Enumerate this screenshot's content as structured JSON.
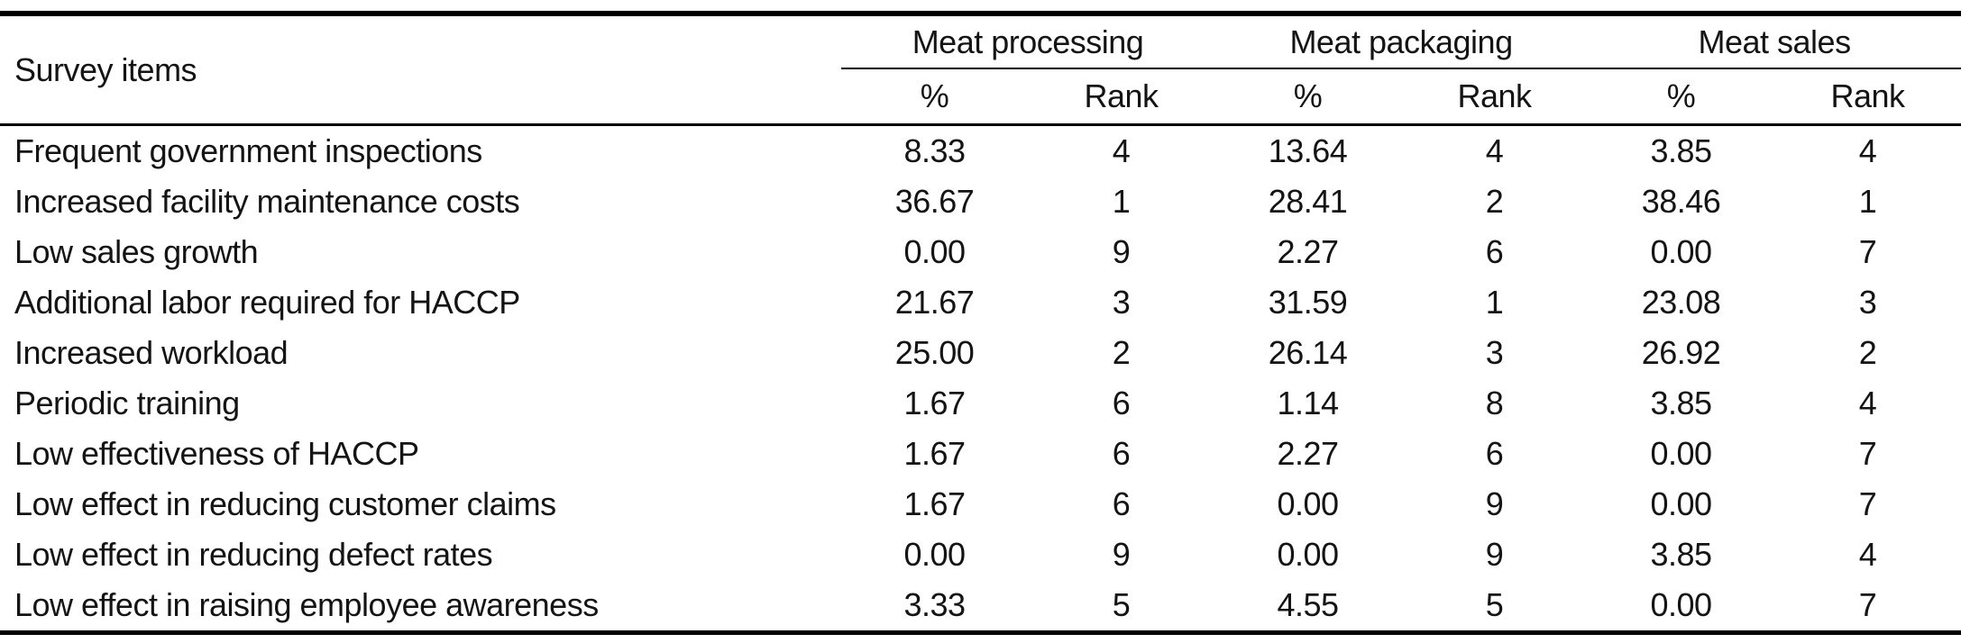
{
  "table": {
    "corner_header": "Survey items",
    "column_groups": [
      {
        "label": "Meat processing",
        "sub_columns": [
          "%",
          "Rank"
        ]
      },
      {
        "label": "Meat packaging",
        "sub_columns": [
          "%",
          "Rank"
        ]
      },
      {
        "label": "Meat sales",
        "sub_columns": [
          "%",
          "Rank"
        ]
      }
    ],
    "rows": [
      {
        "item": "Frequent government inspections",
        "cells": [
          "8.33",
          "4",
          "13.64",
          "4",
          "3.85",
          "4"
        ]
      },
      {
        "item": "Increased facility maintenance costs",
        "cells": [
          "36.67",
          "1",
          "28.41",
          "2",
          "38.46",
          "1"
        ]
      },
      {
        "item": "Low sales growth",
        "cells": [
          "0.00",
          "9",
          "2.27",
          "6",
          "0.00",
          "7"
        ]
      },
      {
        "item": "Additional labor required for HACCP",
        "cells": [
          "21.67",
          "3",
          "31.59",
          "1",
          "23.08",
          "3"
        ]
      },
      {
        "item": "Increased workload",
        "cells": [
          "25.00",
          "2",
          "26.14",
          "3",
          "26.92",
          "2"
        ]
      },
      {
        "item": "Periodic training",
        "cells": [
          "1.67",
          "6",
          "1.14",
          "8",
          "3.85",
          "4"
        ]
      },
      {
        "item": "Low effectiveness of HACCP",
        "cells": [
          "1.67",
          "6",
          "2.27",
          "6",
          "0.00",
          "7"
        ]
      },
      {
        "item": "Low effect in reducing customer claims",
        "cells": [
          "1.67",
          "6",
          "0.00",
          "9",
          "0.00",
          "7"
        ]
      },
      {
        "item": "Low effect in reducing defect rates",
        "cells": [
          "0.00",
          "9",
          "0.00",
          "9",
          "3.85",
          "4"
        ]
      },
      {
        "item": "Low effect in raising employee awareness",
        "cells": [
          "3.33",
          "5",
          "4.55",
          "5",
          "0.00",
          "7"
        ]
      }
    ]
  },
  "colors": {
    "rule": "#000000",
    "text": "#141414",
    "background": "#ffffff"
  }
}
